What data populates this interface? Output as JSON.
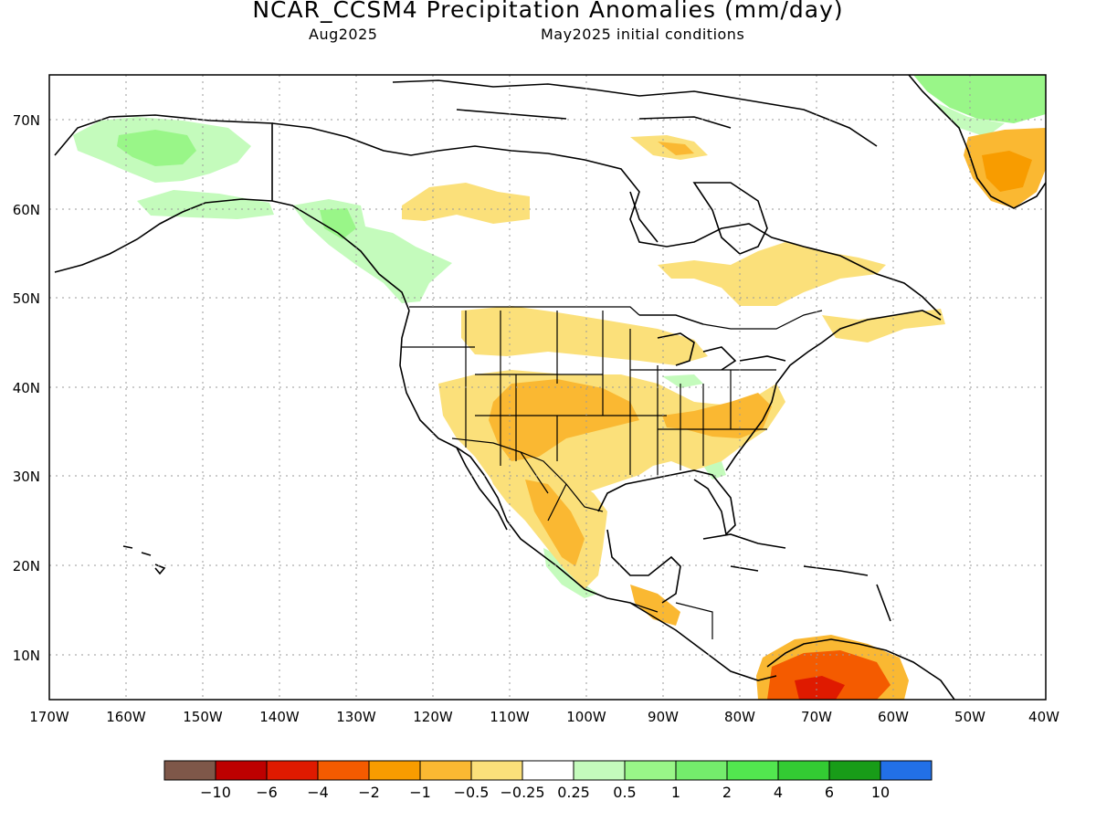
{
  "header": {
    "title": "NCAR_CCSM4 Precipitation Anomalies (mm/day)",
    "valid_month": "Aug2025",
    "init": "May2025 initial conditions"
  },
  "map": {
    "lon_range": [
      -170,
      -40
    ],
    "lat_range": [
      5,
      75
    ],
    "lat_ticks": [
      "70N",
      "60N",
      "50N",
      "40N",
      "30N",
      "20N",
      "10N"
    ],
    "lon_ticks": [
      "170W",
      "160W",
      "150W",
      "140W",
      "130W",
      "120W",
      "110W",
      "100W",
      "90W",
      "80W",
      "70W",
      "60W",
      "50W",
      "40W"
    ],
    "anomaly_regions": [
      {
        "region": "Northern Alaska",
        "class": "0.25 to 0.5"
      },
      {
        "region": "Southeast Alaska / British Columbia",
        "class": "0.25 to 0.5"
      },
      {
        "region": "Greenland (north)",
        "class": "0.5 to 1"
      },
      {
        "region": "Southern Greenland",
        "class": "-2 to -1"
      },
      {
        "region": "Northern Plains / Rockies",
        "class": "-0.5 to -0.25"
      },
      {
        "region": "Central Plains / Colorado",
        "class": "-1 to -0.5"
      },
      {
        "region": "Southwest US / Northwest Mexico",
        "class": "-1 to -0.5"
      },
      {
        "region": "Southeast US / Mid-Atlantic",
        "class": "-1 to -0.5"
      },
      {
        "region": "Southern Mexico",
        "class": "-2 to -1"
      },
      {
        "region": "Northern South America (Venezuela)",
        "class": "-4 to -2"
      }
    ]
  },
  "colorbar": {
    "colors": [
      "#7e5749",
      "#bd0000",
      "#df1a00",
      "#f45b00",
      "#f89c00",
      "#fab832",
      "#fbe07a",
      "#ffffff",
      "#c4fbbc",
      "#99f688",
      "#74ec6c",
      "#52e64f",
      "#33cb33",
      "#189c18",
      "#2270e7"
    ],
    "labels": [
      "−10",
      "−6",
      "−4",
      "−2",
      "−1",
      "−0.5",
      "−0.25",
      "0.25",
      "0.5",
      "1",
      "2",
      "4",
      "6",
      "10"
    ]
  }
}
